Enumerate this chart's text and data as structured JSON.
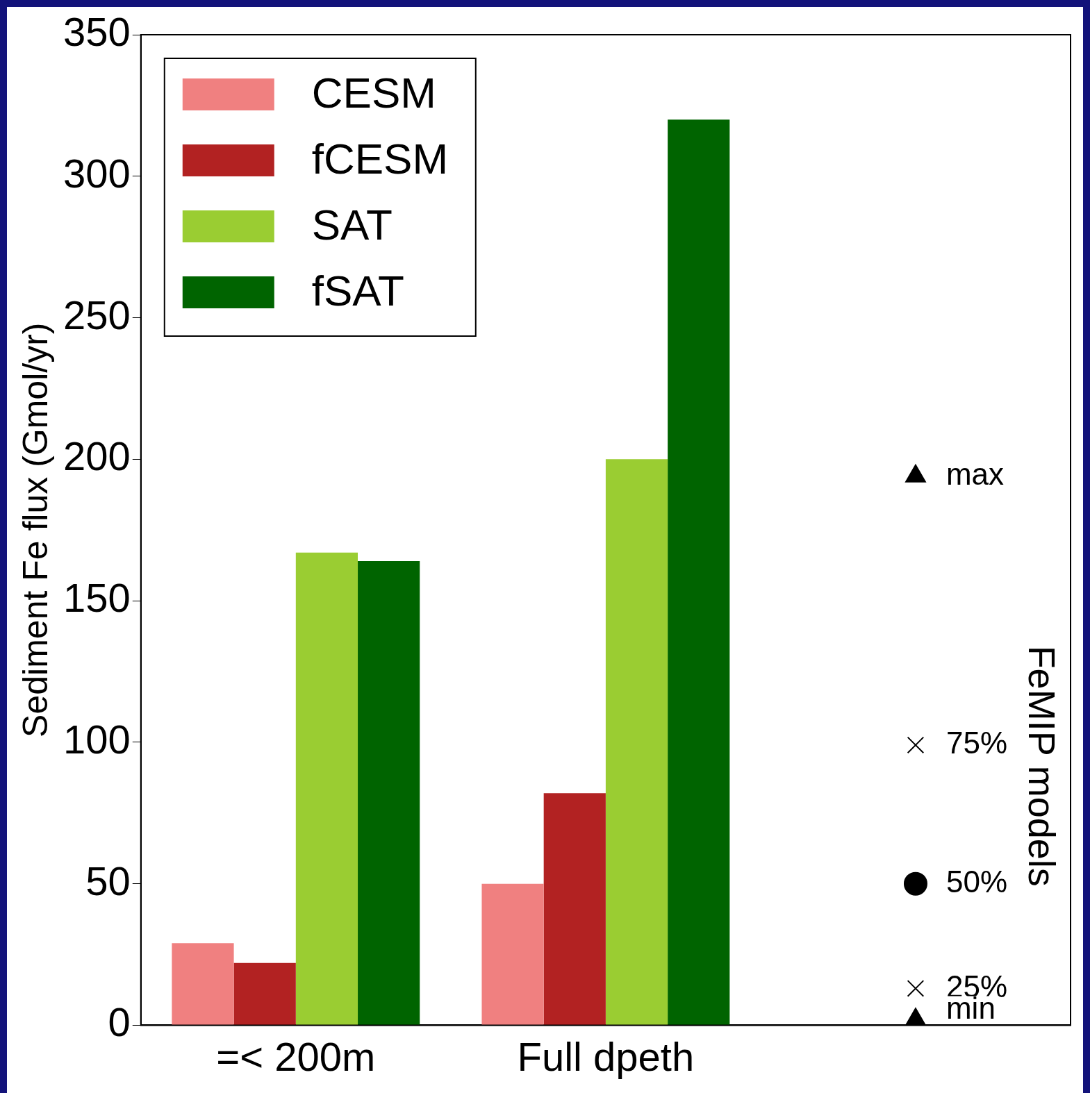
{
  "chart_data": {
    "type": "bar",
    "ylabel": "Sediment Fe flux (Gmol/yr)",
    "categories": [
      "=< 200m",
      "Full dpeth",
      null
    ],
    "ylim": [
      0,
      350
    ],
    "yticks": [
      0,
      50,
      100,
      150,
      200,
      250,
      300,
      350
    ],
    "grid": false,
    "legend": "top left",
    "annotations": [
      "FeMIP models"
    ],
    "series": [
      {
        "name": "CESM",
        "color": "#f08080",
        "values": [
          29,
          50,
          null
        ]
      },
      {
        "name": "fCESM",
        "color": "#b22222",
        "values": [
          22,
          82,
          null
        ]
      },
      {
        "name": "SAT",
        "color": "#9acd32",
        "values": [
          167,
          200,
          null
        ]
      },
      {
        "name": "fSAT",
        "color": "#006400",
        "values": [
          164,
          320,
          null
        ]
      },
      {
        "name": "max",
        "type": "scatter",
        "marker": "triangle",
        "color": "#000000",
        "values": [
          null,
          null,
          194
        ]
      },
      {
        "name": "75%",
        "type": "scatter",
        "marker": "cross",
        "color": "#000000",
        "values": [
          null,
          null,
          99
        ]
      },
      {
        "name": "50%",
        "type": "scatter",
        "marker": "circle",
        "color": "#000000",
        "values": [
          null,
          null,
          50
        ]
      },
      {
        "name": "25%",
        "type": "scatter",
        "marker": "cross",
        "color": "#000000",
        "values": [
          null,
          null,
          13
        ]
      },
      {
        "name": "min",
        "type": "scatter",
        "marker": "triangle",
        "color": "#000000",
        "values": [
          null,
          null,
          2
        ]
      }
    ]
  }
}
